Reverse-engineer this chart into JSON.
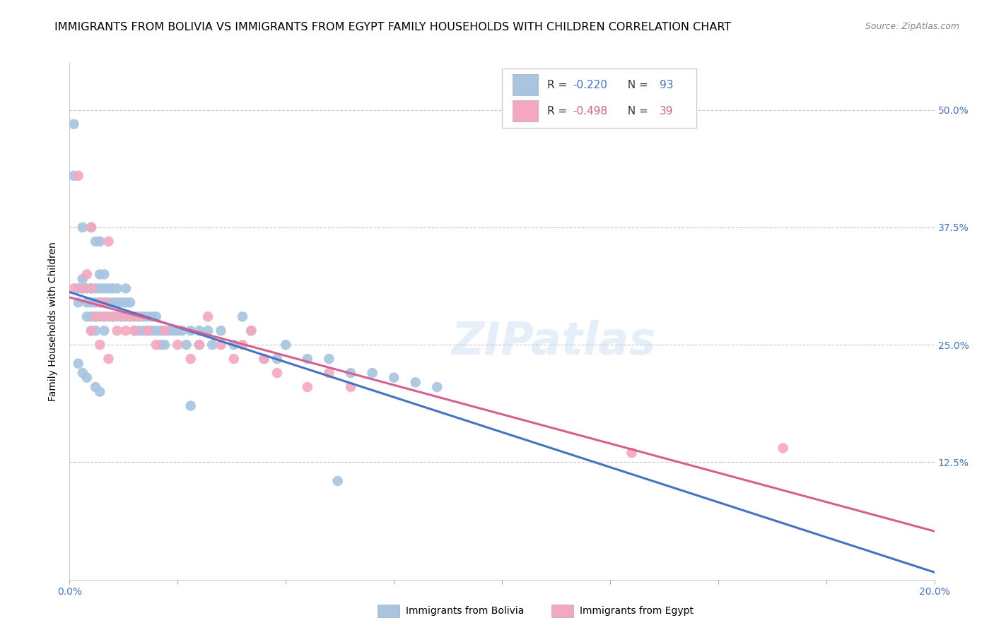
{
  "title": "IMMIGRANTS FROM BOLIVIA VS IMMIGRANTS FROM EGYPT FAMILY HOUSEHOLDS WITH CHILDREN CORRELATION CHART",
  "source": "Source: ZipAtlas.com",
  "ylabel": "Family Households with Children",
  "x_min": 0.0,
  "x_max": 0.2,
  "y_min": 0.0,
  "y_max": 0.55,
  "y_ticks": [
    0.125,
    0.25,
    0.375,
    0.5
  ],
  "y_tick_labels": [
    "12.5%",
    "25.0%",
    "37.5%",
    "50.0%"
  ],
  "bolivia_R": -0.22,
  "bolivia_N": 93,
  "egypt_R": -0.498,
  "egypt_N": 39,
  "bolivia_color": "#a8c4e0",
  "egypt_color": "#f4a8c0",
  "bolivia_line_color": "#4472c4",
  "egypt_line_color": "#d46090",
  "bolivia_scatter_x": [
    0.001,
    0.002,
    0.002,
    0.003,
    0.003,
    0.004,
    0.004,
    0.004,
    0.005,
    0.005,
    0.005,
    0.005,
    0.006,
    0.006,
    0.006,
    0.006,
    0.007,
    0.007,
    0.007,
    0.007,
    0.008,
    0.008,
    0.008,
    0.008,
    0.008,
    0.009,
    0.009,
    0.009,
    0.01,
    0.01,
    0.01,
    0.011,
    0.011,
    0.011,
    0.012,
    0.012,
    0.013,
    0.013,
    0.013,
    0.014,
    0.014,
    0.015,
    0.015,
    0.016,
    0.016,
    0.017,
    0.017,
    0.018,
    0.018,
    0.019,
    0.019,
    0.02,
    0.02,
    0.021,
    0.021,
    0.022,
    0.022,
    0.023,
    0.024,
    0.025,
    0.026,
    0.027,
    0.028,
    0.03,
    0.03,
    0.032,
    0.033,
    0.035,
    0.038,
    0.04,
    0.042,
    0.045,
    0.048,
    0.05,
    0.055,
    0.06,
    0.065,
    0.001,
    0.003,
    0.005,
    0.006,
    0.007,
    0.002,
    0.003,
    0.004,
    0.006,
    0.007,
    0.028,
    0.062,
    0.07,
    0.075,
    0.08,
    0.085
  ],
  "bolivia_scatter_y": [
    0.485,
    0.31,
    0.295,
    0.32,
    0.31,
    0.31,
    0.295,
    0.28,
    0.31,
    0.295,
    0.28,
    0.265,
    0.31,
    0.295,
    0.28,
    0.265,
    0.325,
    0.31,
    0.295,
    0.28,
    0.325,
    0.31,
    0.295,
    0.28,
    0.265,
    0.31,
    0.295,
    0.28,
    0.31,
    0.295,
    0.28,
    0.31,
    0.295,
    0.28,
    0.295,
    0.28,
    0.31,
    0.295,
    0.28,
    0.295,
    0.28,
    0.28,
    0.265,
    0.28,
    0.265,
    0.28,
    0.265,
    0.28,
    0.265,
    0.28,
    0.265,
    0.28,
    0.265,
    0.265,
    0.25,
    0.265,
    0.25,
    0.265,
    0.265,
    0.265,
    0.265,
    0.25,
    0.265,
    0.265,
    0.25,
    0.265,
    0.25,
    0.265,
    0.25,
    0.28,
    0.265,
    0.235,
    0.235,
    0.25,
    0.235,
    0.235,
    0.22,
    0.43,
    0.375,
    0.375,
    0.36,
    0.36,
    0.23,
    0.22,
    0.215,
    0.205,
    0.2,
    0.185,
    0.105,
    0.22,
    0.215,
    0.21,
    0.205
  ],
  "egypt_scatter_x": [
    0.001,
    0.002,
    0.003,
    0.004,
    0.005,
    0.005,
    0.006,
    0.007,
    0.008,
    0.008,
    0.009,
    0.01,
    0.011,
    0.012,
    0.013,
    0.014,
    0.015,
    0.016,
    0.018,
    0.02,
    0.022,
    0.025,
    0.028,
    0.03,
    0.032,
    0.035,
    0.038,
    0.04,
    0.042,
    0.045,
    0.048,
    0.055,
    0.06,
    0.065,
    0.13,
    0.165,
    0.005,
    0.007,
    0.009
  ],
  "egypt_scatter_y": [
    0.31,
    0.43,
    0.31,
    0.325,
    0.375,
    0.31,
    0.28,
    0.295,
    0.295,
    0.28,
    0.36,
    0.28,
    0.265,
    0.28,
    0.265,
    0.28,
    0.265,
    0.28,
    0.265,
    0.25,
    0.265,
    0.25,
    0.235,
    0.25,
    0.28,
    0.25,
    0.235,
    0.25,
    0.265,
    0.235,
    0.22,
    0.205,
    0.22,
    0.205,
    0.135,
    0.14,
    0.265,
    0.25,
    0.235
  ],
  "watermark": "ZIPatlas",
  "background_color": "#ffffff",
  "grid_color": "#c8c8c8",
  "title_fontsize": 11.5,
  "label_fontsize": 10,
  "tick_fontsize": 10,
  "axis_color": "#4472c4"
}
